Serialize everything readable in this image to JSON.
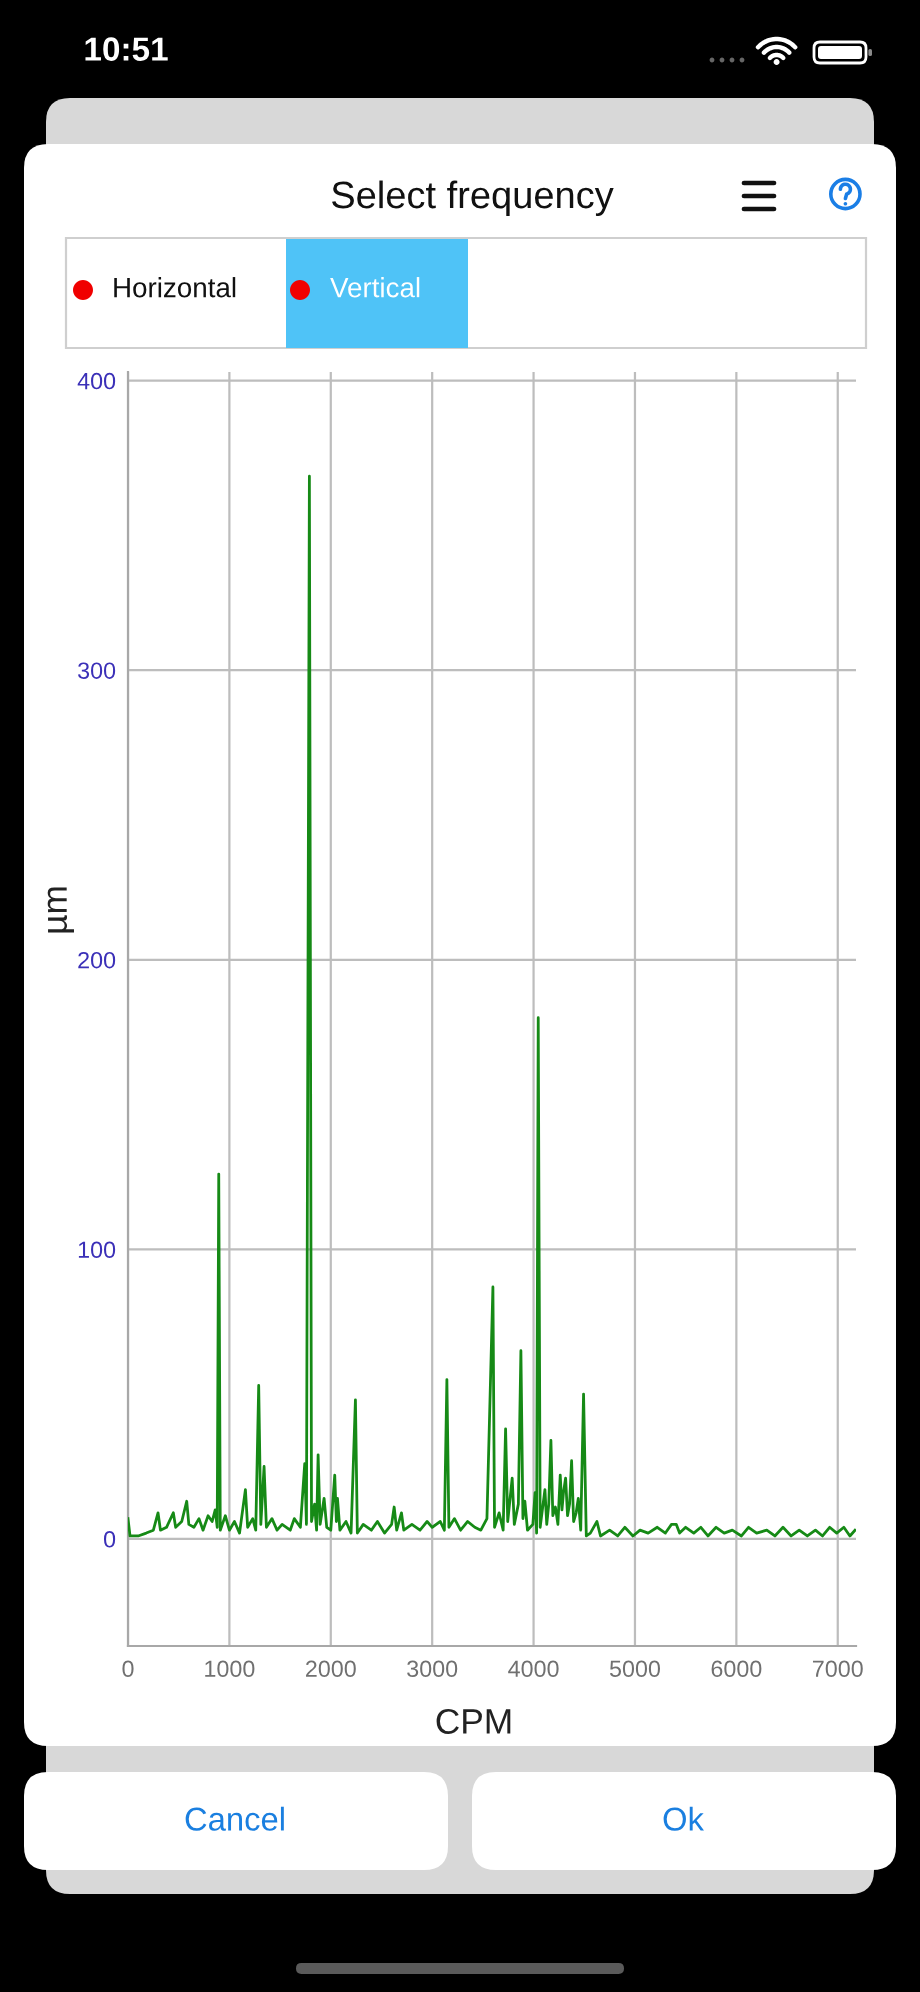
{
  "chart_data": {
    "type": "line",
    "title": "Select frequency",
    "xlabel": "CPM",
    "ylabel": "µm",
    "annotations": [
      "10:51",
      "Horizontal",
      "Vertical",
      "Cancel",
      "Ok"
    ],
    "xlim": [
      0,
      7180
    ],
    "ylim": [
      -37,
      403
    ],
    "xticks": [
      0,
      1000,
      2000,
      3000,
      4000,
      5000,
      6000,
      7000
    ],
    "yticks": [
      0,
      100,
      200,
      300,
      400
    ],
    "grid": true,
    "series": [
      {
        "color": "#168a16",
        "x": [
          0,
          20,
          100,
          180,
          250,
          296,
          320,
          380,
          447,
          470,
          530,
          579,
          600,
          650,
          700,
          740,
          790,
          830,
          860,
          880,
          895,
          910,
          960,
          1000,
          1050,
          1100,
          1158,
          1180,
          1230,
          1260,
          1289,
          1310,
          1342,
          1365,
          1420,
          1470,
          1520,
          1600,
          1640,
          1700,
          1743,
          1760,
          1789,
          1810,
          1840,
          1860,
          1875,
          1895,
          1934,
          1960,
          2000,
          2039,
          2055,
          2066,
          2090,
          2150,
          2200,
          2243,
          2262,
          2320,
          2400,
          2460,
          2530,
          2600,
          2625,
          2650,
          2697,
          2720,
          2800,
          2880,
          2950,
          3000,
          3080,
          3120,
          3145,
          3165,
          3220,
          3280,
          3350,
          3420,
          3480,
          3540,
          3599,
          3615,
          3660,
          3700,
          3724,
          3745,
          3789,
          3810,
          3850,
          3875,
          3895,
          3914,
          3940,
          3993,
          4015,
          4030,
          4046,
          4065,
          4112,
          4130,
          4150,
          4171,
          4190,
          4215,
          4240,
          4263,
          4280,
          4295,
          4316,
          4335,
          4355,
          4375,
          4395,
          4420,
          4441,
          4465,
          4493,
          4520,
          4560,
          4625,
          4660,
          4750,
          4830,
          4900,
          4980,
          5050,
          5130,
          5220,
          5300,
          5360,
          5408,
          5440,
          5500,
          5580,
          5650,
          5720,
          5800,
          5880,
          5960,
          6050,
          6120,
          6200,
          6300,
          6380,
          6460,
          6540,
          6620,
          6700,
          6780,
          6850,
          6920,
          6990,
          7060,
          7120,
          7170
        ],
        "values": [
          7,
          1,
          1,
          2,
          3,
          9,
          3,
          4,
          9,
          4,
          6,
          13,
          5,
          4,
          7,
          3,
          8,
          6,
          10,
          4,
          126,
          3,
          8,
          3,
          6,
          2,
          17,
          4,
          7,
          3,
          53,
          5,
          25,
          4,
          7,
          3,
          5,
          3,
          7,
          4,
          26,
          5,
          367,
          6,
          12,
          3,
          29,
          5,
          14,
          4,
          3,
          22,
          6,
          14,
          3,
          6,
          2,
          48,
          2,
          5,
          3,
          6,
          2,
          5,
          11,
          3,
          9,
          3,
          5,
          3,
          6,
          4,
          6,
          3,
          55,
          4,
          7,
          3,
          6,
          4,
          3,
          7,
          87,
          4,
          9,
          3,
          38,
          6,
          21,
          5,
          12,
          65,
          7,
          13,
          3,
          5,
          16,
          2,
          180,
          4,
          17,
          5,
          12,
          34,
          8,
          11,
          5,
          22,
          10,
          16,
          21,
          8,
          12,
          27,
          6,
          9,
          14,
          3,
          50,
          1,
          2,
          6,
          1,
          3,
          1,
          4,
          1,
          3,
          2,
          4,
          2,
          5,
          5,
          2,
          4,
          2,
          4,
          1,
          4,
          2,
          3,
          1,
          4,
          2,
          3,
          1,
          4,
          1,
          3,
          1,
          3,
          1,
          4,
          2,
          4,
          1,
          3
        ]
      }
    ]
  }
}
